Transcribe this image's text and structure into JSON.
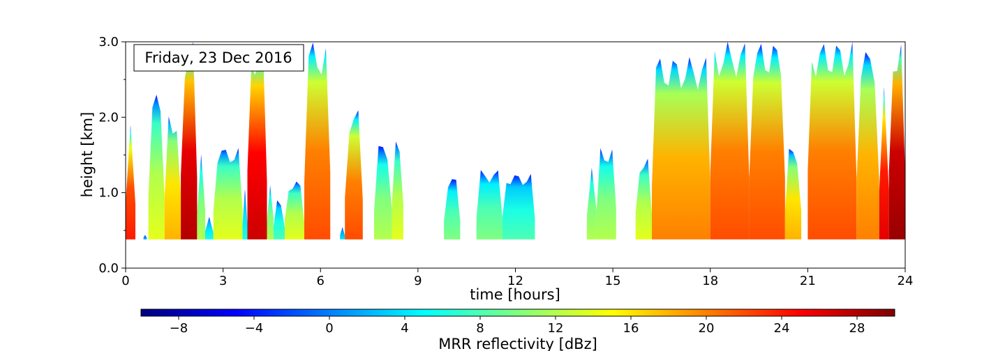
{
  "chart_data": [
    {
      "type": "heatmap",
      "title": "",
      "annotation": "Friday, 23 Dec 2016",
      "annotation_color": "#1f4e9a",
      "xlabel": "time [hours]",
      "ylabel": "height [km]",
      "xlim": [
        0,
        24
      ],
      "ylim": [
        0,
        3.0
      ],
      "x_ticks": [
        0,
        3,
        6,
        9,
        12,
        15,
        18,
        21,
        24
      ],
      "x_tick_labels": [
        "0",
        "3",
        "6",
        "9",
        "12",
        "15",
        "18",
        "21",
        "24"
      ],
      "y_ticks": [
        0,
        1,
        2,
        3
      ],
      "y_tick_labels": [
        "0.0",
        "1.0",
        "2.0",
        "3.0"
      ],
      "y_data_min": 0.38,
      "grid": false,
      "colormap": "jet",
      "colorbar": {
        "label": "MRR reflectivity [dBz]",
        "range": [
          -10,
          30
        ],
        "ticks": [
          -8,
          -4,
          0,
          4,
          8,
          12,
          16,
          20,
          24,
          28
        ],
        "tick_labels": [
          "−8",
          "−4",
          "0",
          "4",
          "8",
          "12",
          "16",
          "20",
          "24",
          "28"
        ],
        "orientation": "horizontal"
      },
      "echo_columns": [
        {
          "start": 0.0,
          "end": 0.3,
          "top": 1.9,
          "core_dbz": 24
        },
        {
          "start": 0.55,
          "end": 0.65,
          "top": 0.45,
          "core_dbz": 2
        },
        {
          "start": 0.7,
          "end": 1.2,
          "top": 2.3,
          "core_dbz": 14
        },
        {
          "start": 1.2,
          "end": 1.7,
          "top": 2.05,
          "core_dbz": 18
        },
        {
          "start": 1.7,
          "end": 2.2,
          "top": 3.0,
          "core_dbz": 28
        },
        {
          "start": 2.2,
          "end": 2.45,
          "top": 1.55,
          "core_dbz": 12
        },
        {
          "start": 2.45,
          "end": 2.7,
          "top": 0.7,
          "core_dbz": 6
        },
        {
          "start": 2.7,
          "end": 3.6,
          "top": 1.6,
          "core_dbz": 14
        },
        {
          "start": 3.6,
          "end": 3.75,
          "top": 1.05,
          "core_dbz": 6
        },
        {
          "start": 3.75,
          "end": 4.35,
          "top": 3.0,
          "core_dbz": 27
        },
        {
          "start": 4.35,
          "end": 4.55,
          "top": 1.2,
          "core_dbz": 12
        },
        {
          "start": 4.55,
          "end": 4.9,
          "top": 0.9,
          "core_dbz": 8
        },
        {
          "start": 4.9,
          "end": 5.5,
          "top": 1.15,
          "core_dbz": 14
        },
        {
          "start": 5.5,
          "end": 6.3,
          "top": 3.0,
          "core_dbz": 22
        },
        {
          "start": 6.6,
          "end": 6.75,
          "top": 0.55,
          "core_dbz": 4
        },
        {
          "start": 6.75,
          "end": 7.3,
          "top": 2.1,
          "core_dbz": 22
        },
        {
          "start": 7.65,
          "end": 8.2,
          "top": 1.65,
          "core_dbz": 12
        },
        {
          "start": 8.2,
          "end": 8.55,
          "top": 1.8,
          "core_dbz": 14
        },
        {
          "start": 9.8,
          "end": 10.3,
          "top": 1.2,
          "core_dbz": 10
        },
        {
          "start": 10.8,
          "end": 11.6,
          "top": 1.3,
          "core_dbz": 10
        },
        {
          "start": 11.6,
          "end": 12.6,
          "top": 1.25,
          "core_dbz": 8
        },
        {
          "start": 14.2,
          "end": 14.5,
          "top": 1.45,
          "core_dbz": 12
        },
        {
          "start": 14.5,
          "end": 15.1,
          "top": 1.6,
          "core_dbz": 12
        },
        {
          "start": 15.7,
          "end": 16.2,
          "top": 1.45,
          "core_dbz": 14
        },
        {
          "start": 16.2,
          "end": 18.0,
          "top": 2.8,
          "core_dbz": 20
        },
        {
          "start": 18.0,
          "end": 19.2,
          "top": 3.0,
          "core_dbz": 22
        },
        {
          "start": 19.2,
          "end": 20.3,
          "top": 3.0,
          "core_dbz": 22
        },
        {
          "start": 20.3,
          "end": 20.8,
          "top": 1.6,
          "core_dbz": 18
        },
        {
          "start": 21.0,
          "end": 22.5,
          "top": 3.0,
          "core_dbz": 22
        },
        {
          "start": 22.5,
          "end": 23.2,
          "top": 2.9,
          "core_dbz": 20
        },
        {
          "start": 23.2,
          "end": 23.5,
          "top": 2.4,
          "core_dbz": 26
        },
        {
          "start": 23.5,
          "end": 24.0,
          "top": 3.0,
          "core_dbz": 29
        }
      ]
    }
  ]
}
